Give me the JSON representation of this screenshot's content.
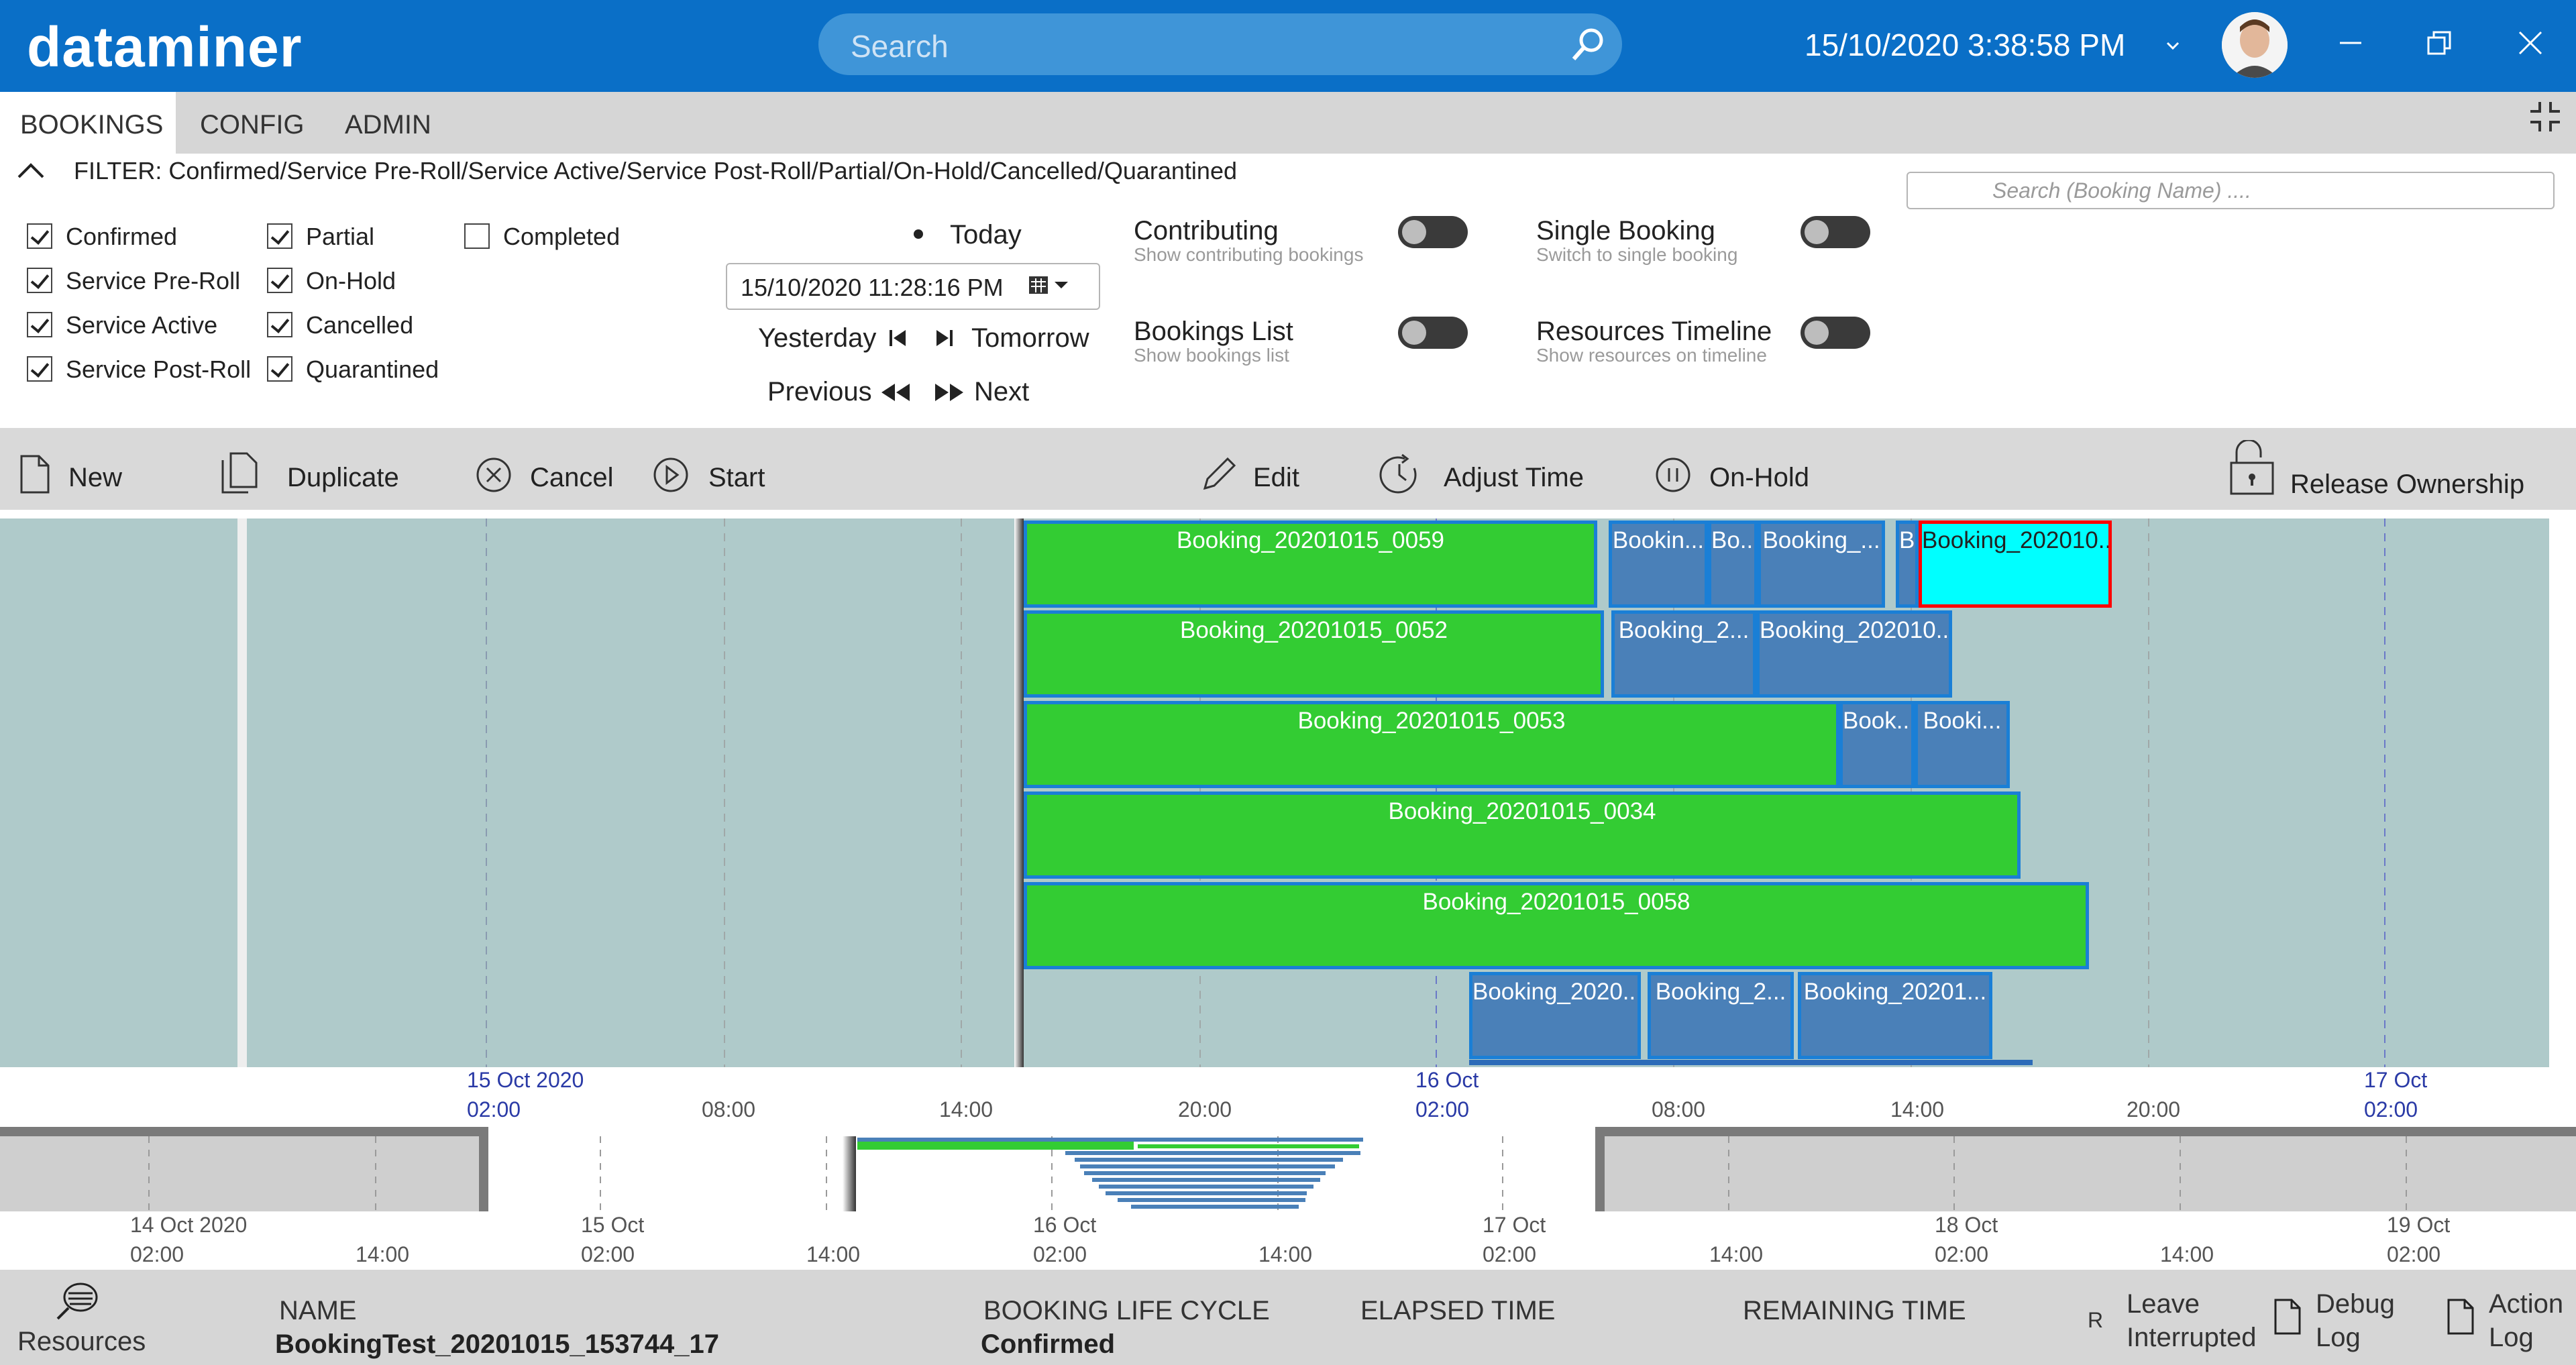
{
  "app": {
    "name": "dataminer",
    "datetime": "15/10/2020 3:38:58 PM"
  },
  "search": {
    "placeholder": "Search"
  },
  "tabs": [
    "BOOKINGS",
    "CONFIG",
    "ADMIN"
  ],
  "filter": {
    "summary": "FILTER: Confirmed/Service Pre-Roll/Service Active/Service Post-Roll/Partial/On-Hold/Cancelled/Quarantined",
    "booking_search_placeholder": "Search (Booking Name) ...."
  },
  "statuses": [
    {
      "label": "Confirmed",
      "checked": true
    },
    {
      "label": "Service Pre-Roll",
      "checked": true
    },
    {
      "label": "Service Active",
      "checked": true
    },
    {
      "label": "Service Post-Roll",
      "checked": true
    },
    {
      "label": "Partial",
      "checked": true
    },
    {
      "label": "On-Hold",
      "checked": true
    },
    {
      "label": "Cancelled",
      "checked": true
    },
    {
      "label": "Quarantined",
      "checked": true
    },
    {
      "label": "Completed",
      "checked": false
    }
  ],
  "date_nav": {
    "today": "Today",
    "date_value": "15/10/2020 11:28:16 PM",
    "yesterday": "Yesterday",
    "tomorrow": "Tomorrow",
    "previous": "Previous",
    "next": "Next"
  },
  "toggles": [
    {
      "title": "Contributing",
      "subtitle": "Show contributing bookings"
    },
    {
      "title": "Single Booking",
      "subtitle": "Switch to single booking"
    },
    {
      "title": "Bookings List",
      "subtitle": "Show bookings list"
    },
    {
      "title": "Resources Timeline",
      "subtitle": "Show resources on timeline"
    }
  ],
  "toolbar": {
    "new": "New",
    "duplicate": "Duplicate",
    "cancel": "Cancel",
    "start": "Start",
    "edit": "Edit",
    "adjust_time": "Adjust Time",
    "on_hold": "On-Hold",
    "release": "Release Ownership"
  },
  "bookings": [
    {
      "label": "Booking_20201015_0059",
      "type": "g"
    },
    {
      "label": "Bookin...",
      "type": "b"
    },
    {
      "label": "Bo...",
      "type": "b"
    },
    {
      "label": "Booking_...",
      "type": "b"
    },
    {
      "label": "B...",
      "type": "b"
    },
    {
      "label": "Booking_202010...",
      "type": "c"
    },
    {
      "label": "Booking_20201015_0052",
      "type": "g"
    },
    {
      "label": "Booking_2...",
      "type": "b"
    },
    {
      "label": "Booking_202010...",
      "type": "b"
    },
    {
      "label": "Booking_20201015_0053",
      "type": "g"
    },
    {
      "label": "Book...",
      "type": "b"
    },
    {
      "label": "Booki...",
      "type": "b"
    },
    {
      "label": "Booking_20201015_0034",
      "type": "g"
    },
    {
      "label": "Booking_20201015_0058",
      "type": "g"
    },
    {
      "label": "Booking_2020...",
      "type": "b"
    },
    {
      "label": "Booking_2...",
      "type": "b"
    },
    {
      "label": "Booking_20201...",
      "type": "b"
    }
  ],
  "timeline_axis": [
    {
      "date": "15 Oct 2020",
      "time": "02:00",
      "blue": true
    },
    {
      "date": "",
      "time": "08:00",
      "blue": false
    },
    {
      "date": "",
      "time": "14:00",
      "blue": false
    },
    {
      "date": "",
      "time": "20:00",
      "blue": false
    },
    {
      "date": "16 Oct",
      "time": "02:00",
      "blue": true
    },
    {
      "date": "",
      "time": "08:00",
      "blue": false
    },
    {
      "date": "",
      "time": "14:00",
      "blue": false
    },
    {
      "date": "",
      "time": "20:00",
      "blue": false
    },
    {
      "date": "17 Oct",
      "time": "02:00",
      "blue": true
    }
  ],
  "overview_axis": [
    {
      "date": "14 Oct 2020",
      "time": "02:00"
    },
    {
      "date": "",
      "time": "14:00"
    },
    {
      "date": "15 Oct",
      "time": "02:00"
    },
    {
      "date": "",
      "time": "14:00"
    },
    {
      "date": "16 Oct",
      "time": "02:00"
    },
    {
      "date": "",
      "time": "14:00"
    },
    {
      "date": "17 Oct",
      "time": "02:00"
    },
    {
      "date": "",
      "time": "14:00"
    },
    {
      "date": "18 Oct",
      "time": "02:00"
    },
    {
      "date": "",
      "time": "14:00"
    },
    {
      "date": "19 Oct",
      "time": "02:00"
    }
  ],
  "status_bar": {
    "resources": "Resources",
    "name_header": "NAME",
    "name_value": "BookingTest_20201015_153744_17",
    "lifecycle_header": "BOOKING LIFE CYCLE",
    "lifecycle_value": "Confirmed",
    "elapsed": "ELAPSED TIME",
    "remaining": "REMAINING TIME",
    "r_marker": "R",
    "leave": "Leave",
    "interrupted": "Interrupted",
    "debug": "Debug",
    "debug_log": "Log",
    "action": "Action",
    "action_log": "Log"
  },
  "colors": {
    "header": "#0a6fc7",
    "confirmed_green": "#33cc33",
    "booking_blue": "#4a80b8",
    "selected_cyan": "#00ffff",
    "timeline_bg": "#afcaca"
  }
}
